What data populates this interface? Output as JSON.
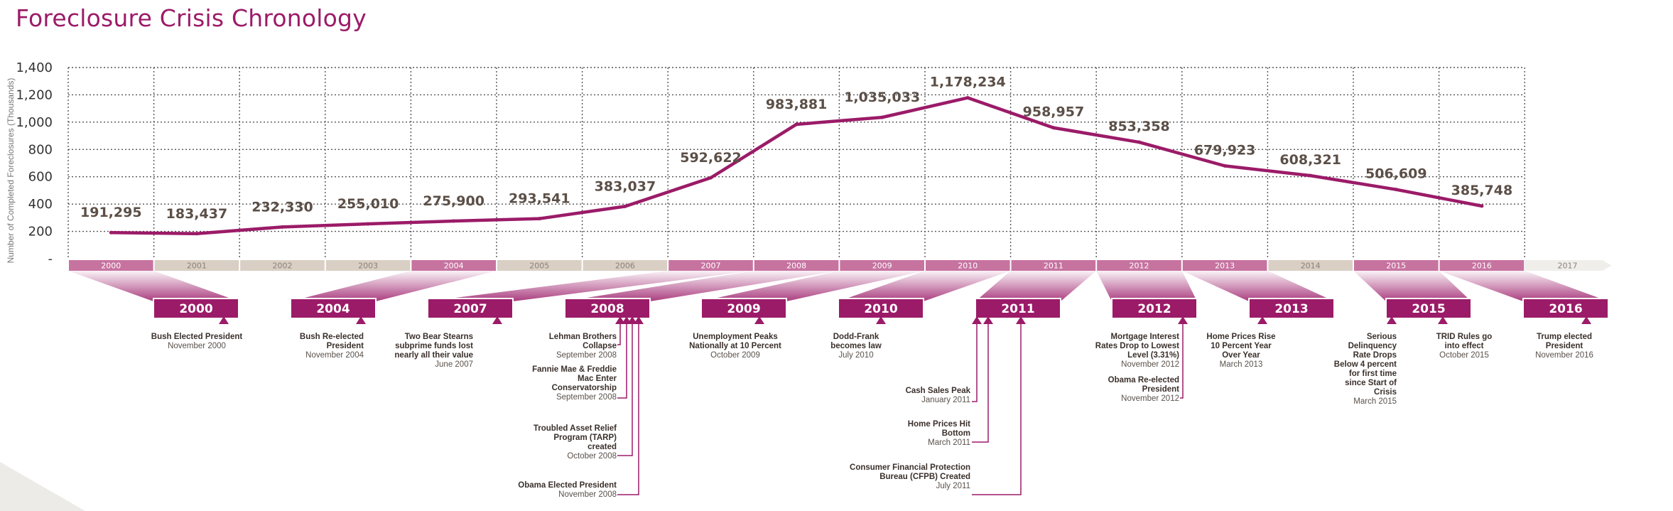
{
  "title": "Foreclosure Crisis Chronology",
  "colors": {
    "brand": "#9b1b68",
    "band_active": "#c773a0",
    "band_inactive": "#d9cfc4",
    "grid": "#555555"
  },
  "chart_data": {
    "type": "line",
    "ylabel": "Number of Completed Foreclosures (Thousands)",
    "ylim": [
      0,
      1400
    ],
    "yticks": [
      {
        "value": 0,
        "label": "-"
      },
      {
        "value": 200,
        "label": "200"
      },
      {
        "value": 400,
        "label": "400"
      },
      {
        "value": 600,
        "label": "600"
      },
      {
        "value": 800,
        "label": "800"
      },
      {
        "value": 1000,
        "label": "1,000"
      },
      {
        "value": 1200,
        "label": "1,200"
      },
      {
        "value": 1400,
        "label": "1,400"
      }
    ],
    "grid": true,
    "x": [
      "2000",
      "2001",
      "2002",
      "2003",
      "2004",
      "2005",
      "2006",
      "2007",
      "2008",
      "2009",
      "2010",
      "2011",
      "2012",
      "2013",
      "2014",
      "2015",
      "2016"
    ],
    "values": [
      191295,
      183437,
      232330,
      255010,
      275900,
      293541,
      383037,
      592622,
      983881,
      1035033,
      1178234,
      958957,
      853358,
      679923,
      608321,
      506609,
      385748
    ],
    "labels": [
      "191,295",
      "183,437",
      "232,330",
      "255,010",
      "275,900",
      "293,541",
      "383,037",
      "592,622",
      "983,881",
      "1,035,033",
      "1,178,234",
      "958,957",
      "853,358",
      "679,923",
      "608,321",
      "506,609",
      "385,748"
    ]
  },
  "year_band": [
    {
      "label": "2000",
      "active": true
    },
    {
      "label": "2001",
      "active": false
    },
    {
      "label": "2002",
      "active": false
    },
    {
      "label": "2003",
      "active": false
    },
    {
      "label": "2004",
      "active": true
    },
    {
      "label": "2005",
      "active": false
    },
    {
      "label": "2006",
      "active": false
    },
    {
      "label": "2007",
      "active": true
    },
    {
      "label": "2008",
      "active": true
    },
    {
      "label": "2009",
      "active": true
    },
    {
      "label": "2010",
      "active": true
    },
    {
      "label": "2011",
      "active": true
    },
    {
      "label": "2012",
      "active": true
    },
    {
      "label": "2013",
      "active": true
    },
    {
      "label": "2014",
      "active": false
    },
    {
      "label": "2015",
      "active": true
    },
    {
      "label": "2016",
      "active": true
    },
    {
      "label": "2017",
      "active": false
    }
  ],
  "year_boxes": [
    "2000",
    "2004",
    "2007",
    "2008",
    "2009",
    "2010",
    "2011",
    "2012",
    "2013",
    "2015",
    "2016"
  ],
  "events": [
    {
      "title": "Bush Elected President",
      "date": "November 2000"
    },
    {
      "title": "Bush Re-elected President",
      "date": "November 2004"
    },
    {
      "title": "Two Bear Stearns subprime funds lost nearly all their value",
      "date": "June 2007"
    },
    {
      "title": "Lehman Brothers Collapse",
      "date": "September 2008"
    },
    {
      "title": "Fannie Mae & Freddie Mac Enter Conservatorship",
      "date": "September 2008"
    },
    {
      "title": "Troubled Asset Relief Program (TARP) created",
      "date": "October 2008"
    },
    {
      "title": "Obama Elected President",
      "date": "November 2008"
    },
    {
      "title": "Unemployment Peaks Nationally at 10 Percent",
      "date": "October 2009"
    },
    {
      "title": "Dodd-Frank becomes law",
      "date": "July 2010"
    },
    {
      "title": "Cash Sales Peak",
      "date": "January 2011"
    },
    {
      "title": "Home Prices Hit Bottom",
      "date": "March 2011"
    },
    {
      "title": "Consumer Financial Protection Bureau (CFPB) Created",
      "date": "July 2011"
    },
    {
      "title": "Mortgage Interest Rates Drop to Lowest Level (3.31%)",
      "date": "November 2012"
    },
    {
      "title": "Obama Re-elected President",
      "date": "November 2012"
    },
    {
      "title": "Home Prices Rise 10 Percent Year Over Year",
      "date": "March 2013"
    },
    {
      "title": "Serious Delinquency Rate Drops Below 4 percent for first time since Start of Crisis",
      "date": "March 2015"
    },
    {
      "title": "TRID Rules go into effect",
      "date": "October 2015"
    },
    {
      "title": "Trump elected President",
      "date": "November 2016"
    }
  ]
}
